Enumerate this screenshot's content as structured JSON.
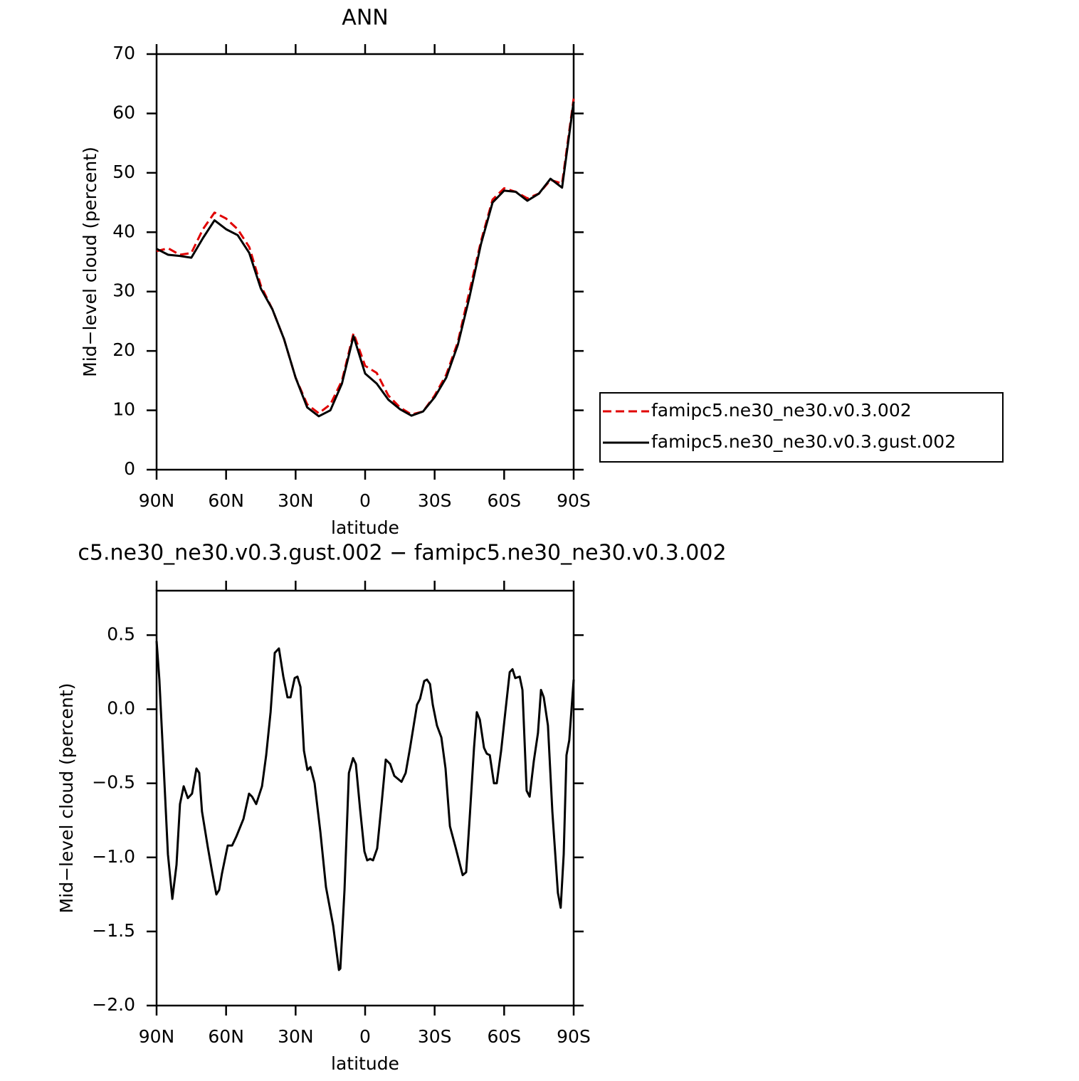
{
  "chart_data": [
    {
      "type": "line",
      "title": "ANN",
      "xlabel": "latitude",
      "ylabel": "Mid−level cloud (percent)",
      "xlim": [
        90,
        -90
      ],
      "xticks": [
        {
          "value": 90,
          "label": "90N"
        },
        {
          "value": 60,
          "label": "60N"
        },
        {
          "value": 30,
          "label": "30N"
        },
        0,
        {
          "value": -30,
          "label": "30S"
        },
        {
          "value": -60,
          "label": "60S"
        },
        {
          "value": -90,
          "label": "90S"
        }
      ],
      "ylim": [
        0,
        70
      ],
      "yticks": [
        0,
        10,
        20,
        30,
        40,
        50,
        60,
        70
      ],
      "legend": "right",
      "x": [
        90,
        85,
        80,
        75,
        70,
        65,
        60,
        55,
        50,
        45,
        40,
        35,
        30,
        25,
        20,
        15,
        10,
        5,
        0,
        -5,
        -10,
        -15,
        -20,
        -25,
        -30,
        -35,
        -40,
        -45,
        -50,
        -55,
        -60,
        -65,
        -70,
        -75,
        -80,
        -85,
        -90
      ],
      "series": [
        {
          "name": "famipc5.ne30_ne30.v0.3.002",
          "color": "#e00000",
          "line_style": "dashed",
          "values": [
            36.8,
            37.3,
            36.2,
            36.5,
            40.5,
            43.3,
            42.3,
            40.5,
            37.5,
            31,
            27,
            22,
            15.5,
            11,
            9.5,
            11,
            15,
            23,
            17.5,
            16.3,
            12.5,
            10.5,
            9.3,
            9.8,
            12.5,
            16,
            21.5,
            30,
            38.5,
            45.5,
            47.4,
            46.8,
            45.7,
            46.5,
            48.8,
            48.2,
            62.5
          ]
        },
        {
          "name": "famipc5.ne30_ne30.v0.3.gust.002",
          "color": "#000000",
          "line_style": "solid",
          "values": [
            37.2,
            36.2,
            36,
            35.7,
            39,
            42,
            40.5,
            39.5,
            36.5,
            30.5,
            27,
            22,
            15.5,
            10.5,
            9,
            10,
            14.5,
            22.5,
            16.2,
            14.5,
            11.8,
            10.2,
            9.1,
            9.8,
            12.2,
            15.5,
            21,
            29,
            38,
            45,
            47,
            46.8,
            45.3,
            46.5,
            49,
            47.5,
            62
          ]
        }
      ]
    },
    {
      "type": "line",
      "title": "c5.ne30_ne30.v0.3.gust.002 − famipc5.ne30_ne30.v0.3.002",
      "xlabel": "latitude",
      "ylabel": "Mid−level cloud (percent)",
      "xlim": [
        90,
        -90
      ],
      "xticks": [
        {
          "value": 90,
          "label": "90N"
        },
        {
          "value": 60,
          "label": "60N"
        },
        {
          "value": 30,
          "label": "30N"
        },
        0,
        {
          "value": -30,
          "label": "30S"
        },
        {
          "value": -60,
          "label": "60S"
        },
        {
          "value": -90,
          "label": "90S"
        }
      ],
      "ylim": [
        -2,
        0.8
      ],
      "yticks": [
        {
          "value": -2,
          "label": "−2.0"
        },
        {
          "value": -1.5,
          "label": "−1.5"
        },
        {
          "value": -1,
          "label": "−1.0"
        },
        {
          "value": -0.5,
          "label": "−0.5"
        },
        {
          "value": 0,
          "label": "0.0"
        },
        0.5
      ],
      "x": [
        90,
        88.8,
        86.9,
        85.1,
        83.2,
        81.4,
        79.9,
        78.3,
        76.5,
        74.7,
        72.8,
        71.6,
        70.4,
        67.9,
        66,
        64.2,
        63,
        61.8,
        59.3,
        57.4,
        55.6,
        52.5,
        50.1,
        48.8,
        47,
        44.5,
        42.7,
        40.8,
        39,
        37.2,
        35.3,
        33.5,
        32.2,
        30.4,
        29.2,
        27.9,
        26.4,
        24.9,
        23.6,
        21.8,
        19.3,
        16.9,
        13.8,
        11.3,
        10.7,
        8.9,
        7,
        5.2,
        4,
        2.2,
        0.3,
        -0.9,
        -2.2,
        -3.4,
        -5.2,
        -7.1,
        -8.9,
        -10.8,
        -12.6,
        -15.7,
        -17.5,
        -19.4,
        -22.4,
        -23.7,
        -25.5,
        -26.7,
        -28,
        -29.2,
        -31,
        -32.9,
        -34.7,
        -36.6,
        -39,
        -42.1,
        -43.6,
        -45.1,
        -47,
        -48.2,
        -49.5,
        -51.3,
        -52.5,
        -53.8,
        -55.6,
        -56.8,
        -58.7,
        -60.5,
        -62.4,
        -63.6,
        -64.8,
        -66.7,
        -67.9,
        -69.7,
        -71,
        -72.8,
        -74.6,
        -75.9,
        -77.1,
        -78.9,
        -80.8,
        -83.2,
        -84.4,
        -85.7,
        -86.9,
        -88.1,
        -90
      ],
      "series": [
        {
          "color": "#000000",
          "line_style": "solid",
          "values": [
            0.46,
            0.2,
            -0.4,
            -0.98,
            -1.28,
            -1.05,
            -0.64,
            -0.52,
            -0.6,
            -0.57,
            -0.4,
            -0.43,
            -0.69,
            -0.93,
            -1.1,
            -1.25,
            -1.22,
            -1.11,
            -0.92,
            -0.92,
            -0.86,
            -0.74,
            -0.57,
            -0.59,
            -0.64,
            -0.52,
            -0.31,
            -0.02,
            0.38,
            0.41,
            0.22,
            0.08,
            0.08,
            0.21,
            0.22,
            0.15,
            -0.28,
            -0.41,
            -0.39,
            -0.5,
            -0.83,
            -1.2,
            -1.46,
            -1.76,
            -1.75,
            -1.22,
            -0.43,
            -0.33,
            -0.37,
            -0.67,
            -0.96,
            -1.02,
            -1.01,
            -1.02,
            -0.94,
            -0.64,
            -0.34,
            -0.37,
            -0.45,
            -0.49,
            -0.43,
            -0.26,
            0.03,
            0.07,
            0.19,
            0.2,
            0.17,
            0.03,
            -0.11,
            -0.19,
            -0.4,
            -0.79,
            -0.93,
            -1.12,
            -1.1,
            -0.74,
            -0.26,
            -0.02,
            -0.07,
            -0.26,
            -0.3,
            -0.31,
            -0.5,
            -0.5,
            -0.28,
            -0.02,
            0.25,
            0.27,
            0.21,
            0.22,
            0.13,
            -0.55,
            -0.59,
            -0.35,
            -0.16,
            0.13,
            0.08,
            -0.11,
            -0.69,
            -1.24,
            -1.34,
            -0.98,
            -0.31,
            -0.21,
            0.2
          ]
        }
      ]
    }
  ]
}
